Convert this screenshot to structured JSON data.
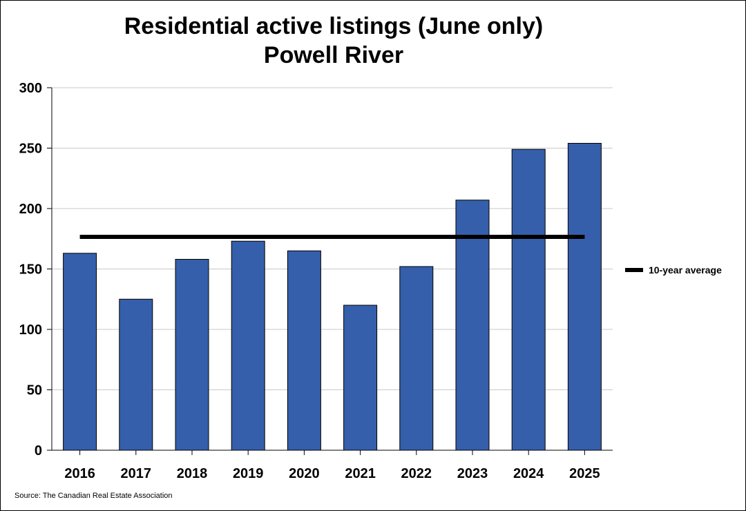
{
  "title_line1": "Residential active listings (June only)",
  "title_line2": "Powell River",
  "source": "Source: The Canadian Real Estate Association",
  "chart_data": {
    "type": "bar",
    "title": "Residential active listings (June only)",
    "subtitle": "Powell River",
    "categories": [
      "2016",
      "2017",
      "2018",
      "2019",
      "2020",
      "2021",
      "2022",
      "2023",
      "2024",
      "2025"
    ],
    "values": [
      163,
      125,
      158,
      173,
      165,
      120,
      152,
      207,
      249,
      254
    ],
    "reference_line": {
      "name": "10-year average",
      "value": 176.6
    },
    "ylim": [
      0,
      300
    ],
    "yticks": [
      0,
      50,
      100,
      150,
      200,
      250,
      300
    ],
    "xlabel": "",
    "ylabel": "",
    "grid": true,
    "legend_position": "right",
    "bar_color": "#355FAA",
    "line_color": "#000000"
  }
}
